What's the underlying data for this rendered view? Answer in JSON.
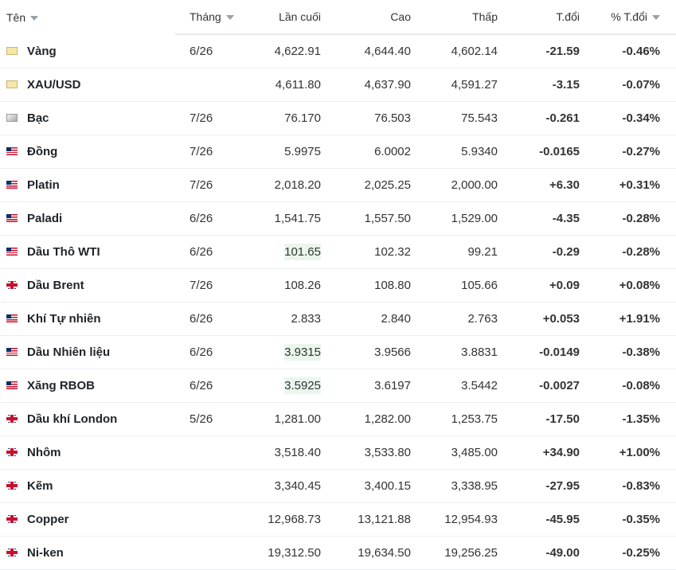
{
  "header": {
    "name": "Tên",
    "month": "Tháng",
    "last": "Lần cuối",
    "high": "Cao",
    "low": "Thấp",
    "change": "T.đổi",
    "change_pct": "% T.đổi"
  },
  "rows": [
    {
      "flag": "gold-icon",
      "name": "Vàng",
      "month": "6/26",
      "last": "4,622.91",
      "high": "4,644.40",
      "low": "4,602.14",
      "change": "-21.59",
      "change_pct": "-0.46%",
      "dir": "neg",
      "hl": false
    },
    {
      "flag": "gold-icon",
      "name": "XAU/USD",
      "month": "",
      "last": "4,611.80",
      "high": "4,637.90",
      "low": "4,591.27",
      "change": "-3.15",
      "change_pct": "-0.07%",
      "dir": "neg",
      "hl": false
    },
    {
      "flag": "silver-icon",
      "name": "Bạc",
      "month": "7/26",
      "last": "76.170",
      "high": "76.503",
      "low": "75.543",
      "change": "-0.261",
      "change_pct": "-0.34%",
      "dir": "neg",
      "hl": false
    },
    {
      "flag": "us-flag-icon",
      "name": "Đồng",
      "month": "7/26",
      "last": "5.9975",
      "high": "6.0002",
      "low": "5.9340",
      "change": "-0.0165",
      "change_pct": "-0.27%",
      "dir": "neg",
      "hl": false
    },
    {
      "flag": "us-flag-icon",
      "name": "Platin",
      "month": "7/26",
      "last": "2,018.20",
      "high": "2,025.25",
      "low": "2,000.00",
      "change": "+6.30",
      "change_pct": "+0.31%",
      "dir": "pos",
      "hl": false
    },
    {
      "flag": "us-flag-icon",
      "name": "Paladi",
      "month": "6/26",
      "last": "1,541.75",
      "high": "1,557.50",
      "low": "1,529.00",
      "change": "-4.35",
      "change_pct": "-0.28%",
      "dir": "neg",
      "hl": false
    },
    {
      "flag": "us-flag-icon",
      "name": "Dầu Thô WTI",
      "month": "6/26",
      "last": "101.65",
      "high": "102.32",
      "low": "99.21",
      "change": "-0.29",
      "change_pct": "-0.28%",
      "dir": "neg",
      "hl": true
    },
    {
      "flag": "uk-flag-icon",
      "name": "Dầu Brent",
      "month": "7/26",
      "last": "108.26",
      "high": "108.80",
      "low": "105.66",
      "change": "+0.09",
      "change_pct": "+0.08%",
      "dir": "pos",
      "hl": false
    },
    {
      "flag": "us-flag-icon",
      "name": "Khí Tự nhiên",
      "month": "6/26",
      "last": "2.833",
      "high": "2.840",
      "low": "2.763",
      "change": "+0.053",
      "change_pct": "+1.91%",
      "dir": "pos",
      "hl": false
    },
    {
      "flag": "us-flag-icon",
      "name": "Dầu Nhiên liệu",
      "month": "6/26",
      "last": "3.9315",
      "high": "3.9566",
      "low": "3.8831",
      "change": "-0.0149",
      "change_pct": "-0.38%",
      "dir": "neg",
      "hl": true
    },
    {
      "flag": "us-flag-icon",
      "name": "Xăng RBOB",
      "month": "6/26",
      "last": "3.5925",
      "high": "3.6197",
      "low": "3.5442",
      "change": "-0.0027",
      "change_pct": "-0.08%",
      "dir": "neg",
      "hl": true
    },
    {
      "flag": "uk-flag-icon",
      "name": "Dầu khí London",
      "month": "5/26",
      "last": "1,281.00",
      "high": "1,282.00",
      "low": "1,253.75",
      "change": "-17.50",
      "change_pct": "-1.35%",
      "dir": "neg",
      "hl": false
    },
    {
      "flag": "uk-flag-icon",
      "name": "Nhôm",
      "month": "",
      "last": "3,518.40",
      "high": "3,533.80",
      "low": "3,485.00",
      "change": "+34.90",
      "change_pct": "+1.00%",
      "dir": "pos",
      "hl": false
    },
    {
      "flag": "uk-flag-icon",
      "name": "Kẽm",
      "month": "",
      "last": "3,340.45",
      "high": "3,400.15",
      "low": "3,338.95",
      "change": "-27.95",
      "change_pct": "-0.83%",
      "dir": "neg",
      "hl": false
    },
    {
      "flag": "uk-flag-icon",
      "name": "Copper",
      "month": "",
      "last": "12,968.73",
      "high": "13,121.88",
      "low": "12,954.93",
      "change": "-45.95",
      "change_pct": "-0.35%",
      "dir": "neg",
      "hl": false
    },
    {
      "flag": "uk-flag-icon",
      "name": "Ni-ken",
      "month": "",
      "last": "19,312.50",
      "high": "19,634.50",
      "low": "19,256.25",
      "change": "-49.00",
      "change_pct": "-0.25%",
      "dir": "neg",
      "hl": false
    }
  ],
  "colors": {
    "negative": "#d91e18",
    "positive": "#0a8a3c",
    "highlight": "#eaf6ec"
  }
}
